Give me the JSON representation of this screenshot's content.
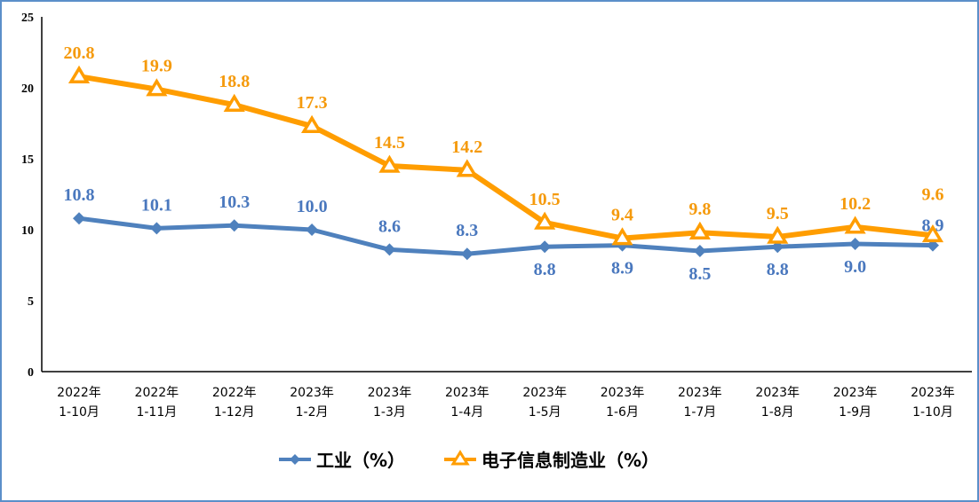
{
  "chart_data": {
    "type": "line",
    "categories": [
      [
        "2022年",
        "1-10月"
      ],
      [
        "2022年",
        "1-11月"
      ],
      [
        "2022年",
        "1-12月"
      ],
      [
        "2023年",
        "1-2月"
      ],
      [
        "2023年",
        "1-3月"
      ],
      [
        "2023年",
        "1-4月"
      ],
      [
        "2023年",
        "1-5月"
      ],
      [
        "2023年",
        "1-6月"
      ],
      [
        "2023年",
        "1-7月"
      ],
      [
        "2023年",
        "1-8月"
      ],
      [
        "2023年",
        "1-9月"
      ],
      [
        "2023年",
        "1-10月"
      ]
    ],
    "yticks": [
      "0",
      "5",
      "10",
      "15",
      "20",
      "25"
    ],
    "ylim": [
      0,
      25
    ],
    "grid": false,
    "legend_position": "bottom",
    "series": [
      {
        "name": "工业（%）",
        "color": "#4f81bd",
        "label_color": "#4a78be",
        "marker": "diamond",
        "values": [
          10.8,
          10.1,
          10.3,
          10.0,
          8.6,
          8.3,
          8.8,
          8.9,
          8.5,
          8.8,
          9.0,
          8.9
        ],
        "labels": [
          "10.8",
          "10.1",
          "10.3",
          "10.0",
          "8.6",
          "8.3",
          "8.8",
          "8.9",
          "8.5",
          "8.8",
          "9.0",
          "8.9"
        ]
      },
      {
        "name": "电子信息制造业（%）",
        "color": "#ff9d00",
        "label_color": "#f59a0c",
        "marker": "triangle",
        "values": [
          20.8,
          19.9,
          18.8,
          17.3,
          14.5,
          14.2,
          10.5,
          9.4,
          9.8,
          9.5,
          10.2,
          9.6
        ],
        "labels": [
          "20.8",
          "19.9",
          "18.8",
          "17.3",
          "14.5",
          "14.2",
          "10.5",
          "9.4",
          "9.8",
          "9.5",
          "10.2",
          "9.6"
        ]
      }
    ]
  }
}
